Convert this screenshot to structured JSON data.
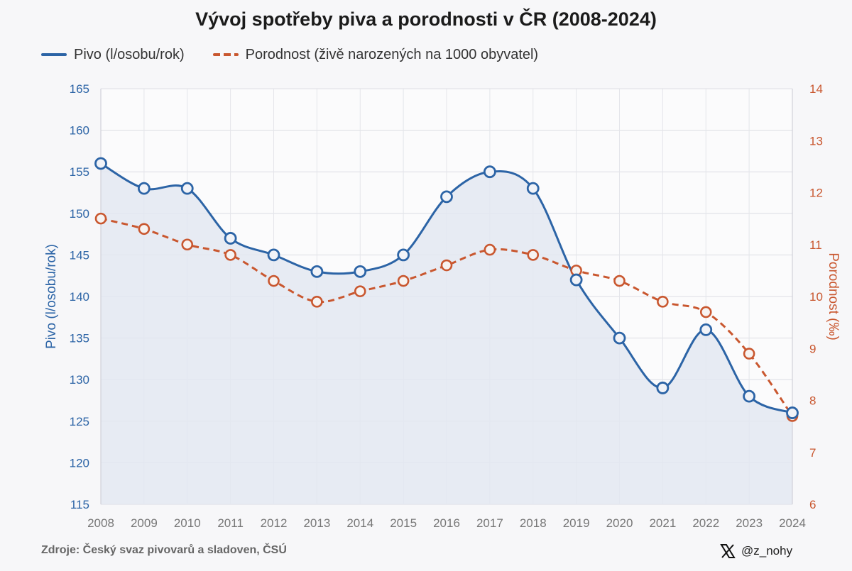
{
  "title": "Vývoj spotřeby piva a porodnosti v ČR (2008-2024)",
  "legend": {
    "beer": "Pivo (l/osobu/rok)",
    "birth": "Porodnost (živě narozených na 1000 obyvatel)"
  },
  "source": "Zdroje: Český svaz pivovarů a sladoven, ČSÚ",
  "handle": "@z_nohy",
  "colors": {
    "beer": "#2c64a6",
    "birth": "#c9572f",
    "area": "#e3e7f1"
  },
  "chart_data": {
    "type": "line",
    "title": "Vývoj spotřeby piva a porodnosti v ČR (2008-2024)",
    "x": [
      "2008",
      "2009",
      "2010",
      "2011",
      "2012",
      "2013",
      "2014",
      "2015",
      "2016",
      "2017",
      "2018",
      "2019",
      "2020",
      "2021",
      "2022",
      "2023",
      "2024"
    ],
    "xlabel": "",
    "ylabel_left": "Pivo (l/osobu/rok)",
    "ylabel_right": "Porodnost (‰)",
    "ylim_left": [
      115,
      165
    ],
    "ylim_right": [
      6,
      14
    ],
    "yticks_left": [
      "115",
      "120",
      "125",
      "130",
      "135",
      "140",
      "145",
      "150",
      "155",
      "160",
      "165"
    ],
    "yticks_right": [
      "6",
      "7",
      "8",
      "9",
      "10",
      "11",
      "12",
      "13",
      "14"
    ],
    "grid": true,
    "legend_position": "top-left",
    "series": [
      {
        "name": "Pivo (l/osobu/rok)",
        "axis": "left",
        "style": "solid-area",
        "values": [
          156,
          153,
          153,
          147,
          145,
          143,
          143,
          145,
          152,
          155,
          153,
          142,
          135,
          129,
          136,
          128,
          126
        ]
      },
      {
        "name": "Porodnost (živě narozených na 1000 obyvatel)",
        "axis": "right",
        "style": "dashed",
        "values": [
          11.5,
          11.3,
          11.0,
          10.8,
          10.3,
          9.9,
          10.1,
          10.3,
          10.6,
          10.9,
          10.8,
          10.5,
          10.3,
          9.9,
          9.7,
          8.9,
          7.7
        ]
      }
    ]
  }
}
